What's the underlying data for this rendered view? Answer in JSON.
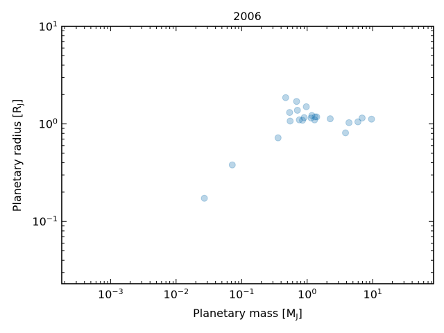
{
  "chart_data": {
    "type": "scatter",
    "title": "2006",
    "xlabel": "Planetary mass [M",
    "xlabel_sub": "J",
    "xlabel_end": "]",
    "ylabel": "Planetary radius [R",
    "ylabel_sub": "J",
    "ylabel_end": "]",
    "xscale": "log",
    "yscale": "log",
    "xlim": [
      0.00018,
      85
    ],
    "ylim": [
      0.023,
      10
    ],
    "grid": false,
    "point_color": "#1f77b4",
    "point_alpha": 0.3,
    "x_ticks": [
      {
        "base": "10",
        "exp": "−3"
      },
      {
        "base": "10",
        "exp": "−2"
      },
      {
        "base": "10",
        "exp": "−1"
      },
      {
        "base": "10",
        "exp": "0"
      },
      {
        "base": "10",
        "exp": "1"
      }
    ],
    "y_ticks": [
      {
        "base": "10",
        "exp": "−1"
      },
      {
        "base": "10",
        "exp": "0"
      },
      {
        "base": "10",
        "exp": "1"
      }
    ],
    "points": [
      {
        "x": 0.027,
        "y": 0.173
      },
      {
        "x": 0.072,
        "y": 0.38
      },
      {
        "x": 0.36,
        "y": 0.72
      },
      {
        "x": 0.47,
        "y": 1.86
      },
      {
        "x": 0.54,
        "y": 1.31
      },
      {
        "x": 0.55,
        "y": 1.07
      },
      {
        "x": 0.69,
        "y": 1.7
      },
      {
        "x": 0.71,
        "y": 1.38
      },
      {
        "x": 0.76,
        "y": 1.1
      },
      {
        "x": 0.85,
        "y": 1.09
      },
      {
        "x": 0.9,
        "y": 1.16
      },
      {
        "x": 0.97,
        "y": 1.5
      },
      {
        "x": 1.15,
        "y": 1.15
      },
      {
        "x": 1.18,
        "y": 1.22
      },
      {
        "x": 1.3,
        "y": 1.1
      },
      {
        "x": 1.32,
        "y": 1.18
      },
      {
        "x": 1.4,
        "y": 1.18
      },
      {
        "x": 2.25,
        "y": 1.13
      },
      {
        "x": 3.85,
        "y": 0.81
      },
      {
        "x": 4.35,
        "y": 1.03
      },
      {
        "x": 5.95,
        "y": 1.05
      },
      {
        "x": 6.9,
        "y": 1.15
      },
      {
        "x": 9.6,
        "y": 1.12
      }
    ]
  }
}
